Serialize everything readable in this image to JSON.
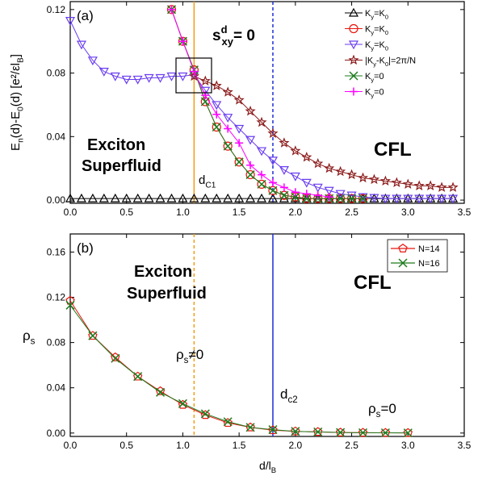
{
  "chart_data": [
    {
      "type": "line",
      "xlim": [
        0,
        3.5
      ],
      "xticks": [
        {
          "value": 0,
          "label": "0.0"
        },
        0.5,
        {
          "value": 1,
          "label": "1.0"
        },
        1.5,
        {
          "value": 2,
          "label": "2.0"
        },
        2.5,
        {
          "value": 3,
          "label": "3.0"
        },
        3.5
      ],
      "ylim": [
        -0.002,
        0.125
      ],
      "yticks": [
        {
          "value": 0,
          "label": "0.00"
        },
        {
          "value": 0.04,
          "label": "0.04"
        },
        {
          "value": 0.08,
          "label": "0.08"
        },
        {
          "value": 0.12,
          "label": "0.12"
        }
      ],
      "ylabel": [
        "E",
        "n",
        "(d)-E",
        "0",
        "(d)  [e²/εl",
        "B",
        "]"
      ],
      "annotations": {
        "panel": "(a)",
        "phase1": [
          "Exciton",
          "Superfluid"
        ],
        "phase2": "CFL",
        "rule": {
          "base": "s",
          "sup": "d",
          "sub": "xy",
          "rest": "= 0"
        },
        "critical": [
          "d",
          "C1"
        ]
      },
      "vlines": [
        {
          "x": 1.1,
          "color": "#f39c12",
          "style": "solid"
        },
        {
          "x": 1.8,
          "color": "#1f2fd6",
          "style": "dashed"
        }
      ],
      "series": [
        {
          "name": [
            "K",
            "y",
            "=K",
            "0"
          ],
          "color": "#000000",
          "marker": "triangle",
          "x": [
            0,
            0.1,
            0.2,
            0.3,
            0.4,
            0.5,
            0.6,
            0.7,
            0.8,
            0.9,
            1.0,
            1.1,
            1.2,
            1.3,
            1.4,
            1.5,
            1.6,
            1.7,
            1.8,
            1.9,
            2.0,
            2.1,
            2.2,
            2.3,
            2.4,
            2.5,
            2.6,
            2.7,
            2.8,
            2.9,
            3.0,
            3.1,
            3.2,
            3.3,
            3.4
          ],
          "values": [
            0.001,
            0.001,
            0.001,
            0.001,
            0.001,
            0.001,
            0.001,
            0.001,
            0.001,
            0.001,
            0.001,
            0.001,
            0.001,
            0.001,
            0.001,
            0.001,
            0.001,
            0.001,
            0.001,
            0.001,
            0.001,
            0.001,
            0.001,
            0.001,
            0.001,
            0.001,
            0.001,
            0.001,
            0.001,
            0.001,
            0.001,
            0.001,
            0.001,
            0.001,
            0.001
          ]
        },
        {
          "name": [
            "K",
            "y",
            "=K",
            "0"
          ],
          "color": "#e8140c",
          "marker": "circle",
          "x": [
            0.9,
            1.0,
            1.1,
            1.2,
            1.3,
            1.4,
            1.5,
            1.6,
            1.7,
            1.8,
            1.9,
            2.0,
            2.1,
            2.2,
            2.3,
            2.4,
            2.5,
            2.6
          ],
          "values": [
            0.12,
            0.1,
            0.082,
            0.062,
            0.046,
            0.034,
            0.024,
            0.016,
            0.01,
            0.006,
            0.003,
            0.002,
            0.001,
            0.001,
            0.001,
            0.001,
            0.001,
            0.001
          ]
        },
        {
          "name": [
            "K",
            "y",
            "=K",
            "0"
          ],
          "color": "#6a3df0",
          "marker": "triangle-down",
          "x": [
            0,
            0.1,
            0.2,
            0.3,
            0.4,
            0.5,
            0.6,
            0.7,
            0.8,
            0.9,
            1.0,
            1.1,
            1.2,
            1.3,
            1.4,
            1.5,
            1.6,
            1.7,
            1.8,
            1.9,
            2.0,
            2.1,
            2.2,
            2.3,
            2.4,
            2.5,
            2.6,
            2.7,
            2.8,
            2.9,
            3.0,
            3.1,
            3.2,
            3.3,
            3.4
          ],
          "values": [
            0.113,
            0.098,
            0.088,
            0.081,
            0.078,
            0.076,
            0.076,
            0.077,
            0.077,
            0.078,
            0.078,
            0.079,
            0.069,
            0.06,
            0.052,
            0.045,
            0.038,
            0.031,
            0.025,
            0.019,
            0.015,
            0.011,
            0.008,
            0.006,
            0.004,
            0.003,
            0.002,
            0.0015,
            0.001,
            0.001,
            0.001,
            0.001,
            0.001,
            0.001,
            0.001
          ]
        },
        {
          "name": [
            "|K",
            "y",
            "-K",
            "0",
            "|=2π/N"
          ],
          "color": "#8b1a1a",
          "marker": "star",
          "x": [
            1.1,
            1.2,
            1.3,
            1.4,
            1.5,
            1.6,
            1.7,
            1.8,
            1.9,
            2.0,
            2.1,
            2.2,
            2.3,
            2.4,
            2.5,
            2.6,
            2.7,
            2.8,
            2.9,
            3.0,
            3.1,
            3.2,
            3.3,
            3.4
          ],
          "values": [
            0.078,
            0.075,
            0.072,
            0.068,
            0.063,
            0.056,
            0.049,
            0.042,
            0.036,
            0.031,
            0.027,
            0.023,
            0.02,
            0.018,
            0.016,
            0.014,
            0.013,
            0.012,
            0.011,
            0.01,
            0.009,
            0.009,
            0.008,
            0.008
          ]
        },
        {
          "name": [
            "K",
            "y",
            "=0"
          ],
          "color": "#1e7b1e",
          "marker": "x",
          "x": [
            0.9,
            1.0,
            1.1,
            1.2,
            1.3,
            1.4,
            1.5,
            1.6,
            1.7,
            1.8,
            1.9,
            2.0,
            2.1,
            2.2,
            2.3,
            2.4,
            2.5,
            2.6
          ],
          "values": [
            0.12,
            0.1,
            0.082,
            0.062,
            0.046,
            0.034,
            0.024,
            0.016,
            0.01,
            0.006,
            0.003,
            0.002,
            0.001,
            0.001,
            0.001,
            0.001,
            0.001,
            0.001
          ]
        },
        {
          "name": [
            "K",
            "y",
            "=0"
          ],
          "color": "#ff00ff",
          "marker": "plus",
          "x": [
            0.9,
            1.0,
            1.1,
            1.2,
            1.3,
            1.4,
            1.5,
            1.6,
            1.7,
            1.8,
            1.9,
            2.0,
            2.1,
            2.2,
            2.3
          ],
          "values": [
            0.12,
            0.1,
            0.081,
            0.066,
            0.054,
            0.045,
            0.036,
            0.022,
            0.016,
            0.011,
            0.008,
            0.005,
            0.004,
            0.003,
            0.002
          ]
        }
      ]
    },
    {
      "type": "line",
      "xlim": [
        0,
        3.5
      ],
      "xticks": [
        {
          "value": 0,
          "label": "0.0"
        },
        0.5,
        {
          "value": 1,
          "label": "1.0"
        },
        1.5,
        {
          "value": 2,
          "label": "2.0"
        },
        2.5,
        {
          "value": 3,
          "label": "3.0"
        },
        3.5
      ],
      "ylim": [
        -0.003,
        0.176
      ],
      "yticks": [
        {
          "value": 0,
          "label": "0.00"
        },
        {
          "value": 0.04,
          "label": "0.04"
        },
        {
          "value": 0.08,
          "label": "0.08"
        },
        {
          "value": 0.12,
          "label": "0.12"
        },
        {
          "value": 0.16,
          "label": "0.16"
        }
      ],
      "xlabel": [
        "d/l",
        "B"
      ],
      "ylabel": [
        "ρ",
        "s"
      ],
      "annotations": {
        "panel": "(b)",
        "phase1": [
          "Exciton",
          "Superfluid"
        ],
        "phase2": "CFL",
        "order": [
          "ρ",
          "s",
          "≠0"
        ],
        "critical": [
          "d",
          "c2"
        ],
        "disorder": [
          "ρ",
          "s",
          "=0"
        ]
      },
      "vlines": [
        {
          "x": 1.1,
          "color": "#f39c12",
          "style": "dashed"
        },
        {
          "x": 1.8,
          "color": "#1f2fd6",
          "style": "solid"
        }
      ],
      "series": [
        {
          "name": [
            "N=14"
          ],
          "color": "#e8140c",
          "marker": "pentagon",
          "x": [
            0,
            0.2,
            0.4,
            0.6,
            0.8,
            1.0,
            1.2,
            1.4,
            1.6,
            1.8,
            2.0,
            2.2,
            2.4,
            2.6,
            2.8,
            3.0
          ],
          "values": [
            0.117,
            0.086,
            0.067,
            0.05,
            0.037,
            0.025,
            0.016,
            0.009,
            0.005,
            0.0025,
            0.0015,
            0.001,
            0.0005,
            0.0003,
            0.0002,
            0.0001
          ]
        },
        {
          "name": [
            "N=16"
          ],
          "color": "#1e7b1e",
          "marker": "x",
          "x": [
            0,
            0.2,
            0.4,
            0.6,
            0.8,
            1.0,
            1.2,
            1.4,
            1.6,
            1.8,
            2.0,
            2.2,
            2.4,
            2.6,
            2.8,
            3.0
          ],
          "values": [
            0.113,
            0.086,
            0.066,
            0.05,
            0.036,
            0.026,
            0.017,
            0.01,
            0.005,
            0.003,
            0.0015,
            0.001,
            0.0005,
            0.0003,
            0.0002,
            0.0001
          ]
        }
      ]
    }
  ]
}
